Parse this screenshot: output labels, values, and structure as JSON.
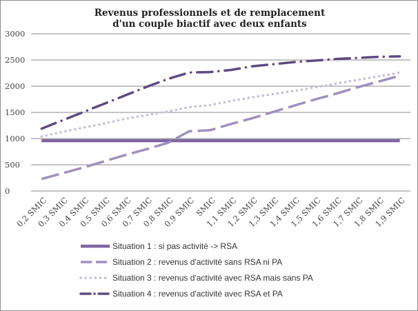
{
  "chart_data": {
    "type": "line",
    "title_lines": [
      "Revenus professionnels et de remplacement",
      "d'un couple biactif avec deux enfants"
    ],
    "xlabel": "",
    "ylabel": "",
    "ylim": [
      0,
      3000
    ],
    "yticks": [
      0,
      500,
      1000,
      1500,
      2000,
      2500,
      3000
    ],
    "grid": "horizontal",
    "legend_position": "bottom",
    "categories": [
      "0,2 SMIC",
      "0,3 SMIC",
      "0,4 SMIC",
      "0,5 SMIC",
      "0,6 SMIC",
      "0,7 SMIC",
      "0,8 SMIC",
      "0,9 SMIC",
      "SMIC",
      "1,1 SMIC",
      "1,2 SMIC",
      "1,3 SMIC",
      "1,4 SMIC",
      "1,5 SMIC",
      "1,6 SMIC",
      "1,7 SMIC",
      "1,8 SMIC",
      "1,9 SMIC"
    ],
    "series": [
      {
        "name": "Situation 1 : si pas activité -> RSA",
        "color": "#8064a2",
        "dash": "solid",
        "values": [
          960,
          960,
          960,
          960,
          960,
          960,
          960,
          960,
          960,
          960,
          960,
          960,
          960,
          960,
          960,
          960,
          960,
          960
        ]
      },
      {
        "name": "Situation 2 : revenus d'activité sans RSA ni PA",
        "color": "#9f8fbe",
        "dash": "longdash",
        "values": [
          230,
          340,
          450,
          570,
          690,
          800,
          920,
          1140,
          1160,
          1280,
          1390,
          1510,
          1630,
          1750,
          1860,
          1980,
          2090,
          2200
        ]
      },
      {
        "name": "Situation 3 : revenus d'activité avec RSA mais sans PA",
        "color": "#c8bdda",
        "dash": "dotted",
        "values": [
          1040,
          1130,
          1210,
          1290,
          1380,
          1450,
          1520,
          1600,
          1640,
          1720,
          1790,
          1850,
          1910,
          1980,
          2050,
          2120,
          2190,
          2260
        ]
      },
      {
        "name": "Situation 4 : revenus d'activité avec RSA et PA",
        "color": "#5e4a82",
        "dash": "dashdot",
        "values": [
          1190,
          1350,
          1510,
          1670,
          1830,
          1990,
          2140,
          2260,
          2270,
          2310,
          2380,
          2420,
          2460,
          2490,
          2520,
          2540,
          2560,
          2570
        ]
      }
    ]
  }
}
